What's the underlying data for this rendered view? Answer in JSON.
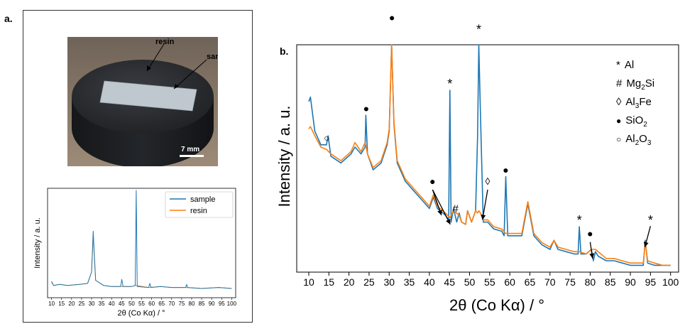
{
  "panels": {
    "a_label": "a.",
    "b_label": "b."
  },
  "photo": {
    "resin_label": "resin",
    "sample_label": "sample",
    "scalebar_label": "7 mm"
  },
  "colors": {
    "sample": "#1f77b4",
    "resin": "#ff7f0e"
  },
  "chart_data": [
    {
      "type": "line",
      "panel": "a",
      "xlabel": "2θ (Co Kα) / °",
      "ylabel": "Intensity / a. u.",
      "xlim": [
        8,
        102
      ],
      "x_ticks": [
        10,
        15,
        20,
        25,
        30,
        35,
        40,
        45,
        50,
        55,
        60,
        65,
        70,
        75,
        80,
        85,
        90,
        95,
        100
      ],
      "legend": {
        "position": "top-right",
        "entries": [
          "sample",
          "resin"
        ]
      },
      "series": [
        {
          "name": "sample",
          "x": [
            10,
            11,
            14,
            18,
            24,
            28,
            30,
            30.8,
            32,
            36,
            40,
            44.5,
            45.1,
            45.7,
            50,
            51.8,
            52.3,
            52.8,
            58.5,
            59.1,
            59.7,
            64.5,
            70,
            77,
            77.5,
            78,
            85,
            93.5,
            100
          ],
          "y": [
            0.11,
            0.07,
            0.08,
            0.07,
            0.08,
            0.09,
            0.2,
            0.6,
            0.12,
            0.07,
            0.06,
            0.06,
            0.13,
            0.06,
            0.06,
            0.07,
            1.0,
            0.06,
            0.05,
            0.09,
            0.05,
            0.06,
            0.05,
            0.05,
            0.08,
            0.05,
            0.04,
            0.05,
            0.04
          ]
        },
        {
          "name": "resin",
          "x": [
            10,
            11,
            14,
            18,
            24,
            28,
            30,
            30.8,
            32,
            36,
            40,
            45,
            50,
            52.3,
            58.5,
            64.5,
            70,
            77,
            85,
            93.5,
            100
          ],
          "y": [
            0.1,
            0.07,
            0.08,
            0.07,
            0.08,
            0.09,
            0.2,
            0.55,
            0.12,
            0.07,
            0.06,
            0.06,
            0.06,
            0.07,
            0.05,
            0.06,
            0.05,
            0.05,
            0.04,
            0.05,
            0.04
          ]
        }
      ]
    },
    {
      "type": "line",
      "panel": "b",
      "xlabel": "2θ (Co Kα) / °",
      "ylabel": "Intensity / a. u.",
      "xlim": [
        7,
        102
      ],
      "ylim": [
        0,
        100
      ],
      "x_ticks": [
        10,
        15,
        20,
        25,
        30,
        35,
        40,
        45,
        50,
        55,
        60,
        65,
        70,
        75,
        80,
        85,
        90,
        95,
        100
      ],
      "legend": {
        "position": "top-right",
        "entries": [
          {
            "symbol": "*",
            "base": "Al",
            "sub": "",
            "tail": ""
          },
          {
            "symbol": "#",
            "base": "Mg",
            "sub": "2",
            "tail": "Si"
          },
          {
            "symbol": "◊",
            "base": "Al",
            "sub": "3",
            "tail": "Fe"
          },
          {
            "symbol": "●",
            "base": "SiO",
            "sub": "2",
            "tail": ""
          },
          {
            "symbol": "○",
            "base": "Al",
            "sub": "2",
            "tail": "O3"
          }
        ]
      },
      "series": [
        {
          "name": "sample",
          "x": [
            10,
            10.4,
            11.5,
            13,
            14.4,
            14.8,
            15.5,
            18,
            20.5,
            21.5,
            23,
            24,
            24.2,
            24.6,
            26,
            28,
            29.5,
            30,
            30.6,
            31.2,
            32,
            34,
            36,
            38,
            40,
            41,
            42,
            44,
            44.8,
            45.1,
            45.4,
            46,
            46.8,
            47.4,
            48,
            49,
            49.5,
            50.5,
            51.5,
            52,
            52.3,
            52.7,
            53.4,
            54.5,
            56,
            58,
            58.6,
            59.0,
            59.5,
            61,
            63,
            64.5,
            66,
            68,
            70,
            71,
            72,
            74,
            76,
            77.0,
            77.3,
            77.7,
            79,
            80.3,
            80.8,
            81.3,
            82,
            84,
            86,
            88,
            90,
            92,
            93.2,
            93.7,
            94.3,
            96,
            98,
            100
          ],
          "y": [
            75,
            77,
            62,
            56,
            56,
            60,
            51,
            48,
            52,
            55,
            52,
            55,
            69,
            52,
            45,
            48,
            56,
            62,
            100,
            65,
            48,
            40,
            36,
            32,
            28,
            33,
            28,
            25,
            23,
            80,
            22,
            28,
            22,
            26,
            22,
            21,
            27,
            22,
            27,
            60,
            100,
            70,
            22,
            22,
            19,
            18,
            16,
            42,
            16,
            16,
            16,
            30,
            16,
            12,
            10,
            14,
            10,
            9,
            8,
            8,
            20,
            8,
            8,
            10,
            5,
            9,
            7,
            5,
            5,
            4,
            3,
            3,
            3,
            14,
            4,
            3,
            3,
            3
          ]
        },
        {
          "name": "resin",
          "x": [
            10,
            10.4,
            11.5,
            13,
            14.4,
            15.5,
            18,
            20.5,
            21.5,
            23,
            24,
            24.6,
            26,
            28,
            29.5,
            30,
            30.6,
            31.2,
            32,
            34,
            36,
            38,
            40,
            41,
            42,
            44,
            45.1,
            46,
            47.4,
            48,
            49,
            49.5,
            50.5,
            51.5,
            52,
            52.3,
            52.7,
            53.4,
            54.5,
            56,
            58,
            59.0,
            61,
            63,
            64.5,
            66,
            68,
            70,
            71,
            72,
            74,
            76,
            77.3,
            79,
            80.3,
            81.3,
            82,
            84,
            86,
            88,
            90,
            92,
            93.2,
            93.7,
            94.3,
            96,
            98,
            100
          ],
          "y": [
            63,
            64,
            60,
            55,
            54,
            52,
            49,
            53,
            57,
            53,
            57,
            52,
            46,
            49,
            57,
            63,
            100,
            66,
            49,
            41,
            37,
            33,
            29,
            34,
            29,
            26,
            24,
            27,
            25,
            22,
            21,
            27,
            22,
            27,
            26,
            27,
            26,
            23,
            23,
            20,
            19,
            17,
            17,
            17,
            31,
            17,
            13,
            11,
            14,
            11,
            10,
            9,
            9,
            8,
            10,
            10,
            9,
            6,
            6,
            5,
            4,
            4,
            4,
            13,
            5,
            4,
            3,
            3
          ]
        }
      ],
      "annotations": [
        {
          "symbol": "○",
          "x": 14.5,
          "y": 59
        },
        {
          "symbol": "●",
          "x": 24.3,
          "y": 72
        },
        {
          "symbol": "●",
          "x": 30.7,
          "y": 112
        },
        {
          "symbol": "*",
          "x": 45.1,
          "y": 84
        },
        {
          "symbol": "●",
          "x": 40.8,
          "y": 40,
          "arrow_to": [
            [
              43,
              25
            ],
            [
              45.2,
              21
            ]
          ]
        },
        {
          "symbol": "#",
          "x": 46.5,
          "y": 28
        },
        {
          "symbol": "*",
          "x": 52.3,
          "y": 108
        },
        {
          "symbol": "◊",
          "x": 54.5,
          "y": 40,
          "arrow_to": [
            [
              53.2,
              23
            ]
          ]
        },
        {
          "symbol": "●",
          "x": 59.0,
          "y": 45
        },
        {
          "symbol": "*",
          "x": 77.3,
          "y": 24
        },
        {
          "symbol": "●",
          "x": 80.0,
          "y": 17,
          "arrow_to": [
            [
              80.6,
              6
            ]
          ]
        },
        {
          "symbol": "*",
          "x": 95.0,
          "y": 24,
          "arrow_to": [
            [
              93.6,
              11
            ]
          ]
        }
      ]
    }
  ]
}
